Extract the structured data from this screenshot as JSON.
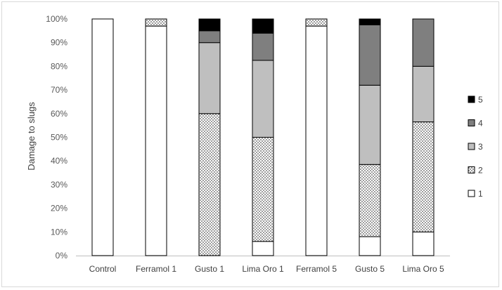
{
  "chart_data": {
    "type": "bar",
    "stacked": true,
    "percent": true,
    "title": "",
    "xlabel": "",
    "ylabel": "Damage to slugs",
    "ylim": [
      0,
      100
    ],
    "y_ticks": [
      "0%",
      "10%",
      "20%",
      "30%",
      "40%",
      "50%",
      "60%",
      "70%",
      "80%",
      "90%",
      "100%"
    ],
    "grid": false,
    "legend_position": "right",
    "categories": [
      "Control",
      "Ferramol 1",
      "Gusto 1",
      "Lima Oro 1",
      "Ferramol 5",
      "Gusto 5",
      "Lima Oro 5"
    ],
    "series": [
      {
        "name": "1",
        "values": [
          100,
          97,
          0,
          6,
          97,
          8,
          10
        ]
      },
      {
        "name": "2",
        "values": [
          0,
          3,
          60,
          44,
          3,
          30.5,
          46.5
        ]
      },
      {
        "name": "3",
        "values": [
          0,
          0,
          30,
          32.5,
          0,
          33.5,
          23.5
        ]
      },
      {
        "name": "4",
        "values": [
          0,
          0,
          5,
          11.5,
          0,
          25.5,
          20
        ]
      },
      {
        "name": "5",
        "values": [
          0,
          0,
          5,
          6,
          0,
          2.5,
          0
        ]
      }
    ],
    "series_styles": [
      {
        "fill": "#ffffff"
      },
      {
        "fill": "dots"
      },
      {
        "fill": "#bfbfbf"
      },
      {
        "fill": "#7f7f7f"
      },
      {
        "fill": "#000000"
      }
    ]
  }
}
